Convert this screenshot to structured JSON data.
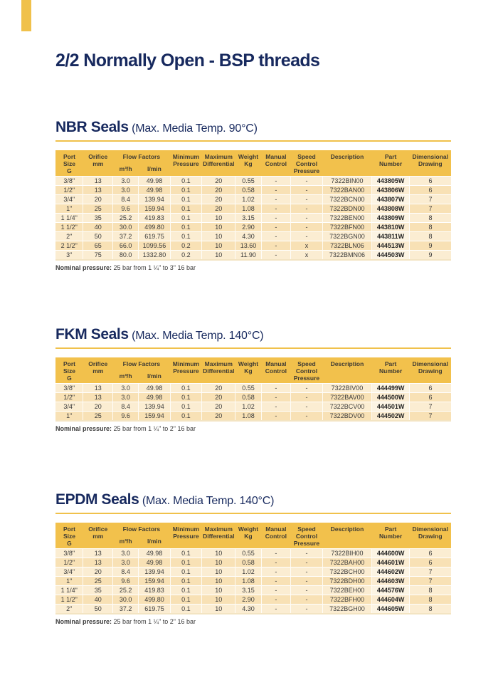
{
  "page_title": "2/2 Normally Open - BSP threads",
  "colors": {
    "accent_gold": "#F0C14B",
    "heading_navy": "#17295E",
    "header_fill": "#F2C14C"
  },
  "sections": [
    {
      "title": "NBR Seals",
      "subtitle": "(Max. Media Temp. 90°C)",
      "footnote": {
        "label": "Nominal pressure:",
        "text": "25 bar from 1 ¼\" to 3\" 16 bar"
      },
      "table": {
        "headers": [
          {
            "label": "Port\nSize\nG"
          },
          {
            "label": "Orifice\nmm"
          },
          {
            "label": "Flow Factors",
            "sub": [
              "m³/h",
              "l/min"
            ]
          },
          {
            "label": "Minimum\nPressure"
          },
          {
            "label": "Maximum\nDifferential"
          },
          {
            "label": "Weight\nKg"
          },
          {
            "label": "Manual\nControl"
          },
          {
            "label": "Speed\nControl\nPressure"
          },
          {
            "label": "Description"
          },
          {
            "label": "Part\nNumber"
          },
          {
            "label": "Dimensional\nDrawing"
          }
        ],
        "rows": [
          [
            "3/8\"",
            "13",
            "3.0",
            "49.98",
            "0.1",
            "20",
            "0.55",
            "-",
            "-",
            "7322BIN00",
            "443805W",
            "6"
          ],
          [
            "1/2\"",
            "13",
            "3.0",
            "49.98",
            "0.1",
            "20",
            "0.58",
            "-",
            "-",
            "7322BAN00",
            "443806W",
            "6"
          ],
          [
            "3/4\"",
            "20",
            "8.4",
            "139.94",
            "0.1",
            "20",
            "1.02",
            "-",
            "-",
            "7322BCN00",
            "443807W",
            "7"
          ],
          [
            "1\"",
            "25",
            "9.6",
            "159.94",
            "0.1",
            "20",
            "1.08",
            "-",
            "-",
            "7322BDN00",
            "443808W",
            "7"
          ],
          [
            "1 1/4\"",
            "35",
            "25.2",
            "419.83",
            "0.1",
            "10",
            "3.15",
            "-",
            "-",
            "7322BEN00",
            "443809W",
            "8"
          ],
          [
            "1 1/2\"",
            "40",
            "30.0",
            "499.80",
            "0.1",
            "10",
            "2.90",
            "-",
            "-",
            "7322BFN00",
            "443810W",
            "8"
          ],
          [
            "2\"",
            "50",
            "37.2",
            "619.75",
            "0.1",
            "10",
            "4.30",
            "-",
            "-",
            "7322BGN00",
            "443811W",
            "8"
          ],
          [
            "2 1/2\"",
            "65",
            "66.0",
            "1099.56",
            "0.2",
            "10",
            "13.60",
            "-",
            "x",
            "7322BLN06",
            "444513W",
            "9"
          ],
          [
            "3\"",
            "75",
            "80.0",
            "1332.80",
            "0.2",
            "10",
            "11.90",
            "-",
            "x",
            "7322BMN06",
            "444503W",
            "9"
          ]
        ]
      }
    },
    {
      "title": "FKM Seals",
      "subtitle": "(Max. Media Temp. 140°C)",
      "footnote": {
        "label": "Nominal pressure:",
        "text": "25 bar from 1 ¼\" to 2\" 16 bar"
      },
      "table": {
        "headers": [
          {
            "label": "Port\nSize\nG"
          },
          {
            "label": "Orifice\nmm"
          },
          {
            "label": "Flow Factors",
            "sub": [
              "m³/h",
              "l/min"
            ]
          },
          {
            "label": "Minimum\nPressure"
          },
          {
            "label": "Maximum\nDifferential"
          },
          {
            "label": "Weight\nKg"
          },
          {
            "label": "Manual\nControl"
          },
          {
            "label": "Speed\nControl\nPressure"
          },
          {
            "label": "Description"
          },
          {
            "label": "Part\nNumber"
          },
          {
            "label": "Dimensional\nDrawing"
          }
        ],
        "rows": [
          [
            "3/8\"",
            "13",
            "3.0",
            "49.98",
            "0.1",
            "20",
            "0.55",
            "-",
            "-",
            "7322BIV00",
            "444499W",
            "6"
          ],
          [
            "1/2\"",
            "13",
            "3.0",
            "49.98",
            "0.1",
            "20",
            "0.58",
            "-",
            "-",
            "7322BAV00",
            "444500W",
            "6"
          ],
          [
            "3/4\"",
            "20",
            "8.4",
            "139.94",
            "0.1",
            "20",
            "1.02",
            "-",
            "-",
            "7322BCV00",
            "444501W",
            "7"
          ],
          [
            "1\"",
            "25",
            "9.6",
            "159.94",
            "0.1",
            "20",
            "1.08",
            "-",
            "-",
            "7322BDV00",
            "444502W",
            "7"
          ]
        ]
      }
    },
    {
      "title": "EPDM Seals",
      "subtitle": "(Max. Media Temp. 140°C)",
      "footnote": {
        "label": "Nominal pressure:",
        "text": "25 bar from 1 ¼\" to 2\" 16 bar"
      },
      "table": {
        "headers": [
          {
            "label": "Port\nSize\nG"
          },
          {
            "label": "Orifice\nmm"
          },
          {
            "label": "Flow Factors",
            "sub": [
              "m³/h",
              "l/min"
            ]
          },
          {
            "label": "Minimum\nPressure"
          },
          {
            "label": "Maximum\nDifferential"
          },
          {
            "label": "Weight\nKg"
          },
          {
            "label": "Manual\nControl"
          },
          {
            "label": "Speed\nControl\nPressure"
          },
          {
            "label": "Description"
          },
          {
            "label": "Part\nNumber"
          },
          {
            "label": "Dimensional\nDrawing"
          }
        ],
        "rows": [
          [
            "3/8\"",
            "13",
            "3.0",
            "49.98",
            "0.1",
            "10",
            "0.55",
            "-",
            "-",
            "7322BIH00",
            "444600W",
            "6"
          ],
          [
            "1/2\"",
            "13",
            "3.0",
            "49.98",
            "0.1",
            "10",
            "0.58",
            "-",
            "-",
            "7322BAH00",
            "444601W",
            "6"
          ],
          [
            "3/4\"",
            "20",
            "8.4",
            "139.94",
            "0.1",
            "10",
            "1.02",
            "-",
            "-",
            "7322BCH00",
            "444602W",
            "7"
          ],
          [
            "1\"",
            "25",
            "9.6",
            "159.94",
            "0.1",
            "10",
            "1.08",
            "-",
            "-",
            "7322BDH00",
            "444603W",
            "7"
          ],
          [
            "1 1/4\"",
            "35",
            "25.2",
            "419.83",
            "0.1",
            "10",
            "3.15",
            "-",
            "-",
            "7322BEH00",
            "444576W",
            "8"
          ],
          [
            "1 1/2\"",
            "40",
            "30.0",
            "499.80",
            "0.1",
            "10",
            "2.90",
            "-",
            "-",
            "7322BFH00",
            "444604W",
            "8"
          ],
          [
            "2\"",
            "50",
            "37.2",
            "619.75",
            "0.1",
            "10",
            "4.30",
            "-",
            "-",
            "7322BGH00",
            "444605W",
            "8"
          ]
        ]
      }
    }
  ]
}
